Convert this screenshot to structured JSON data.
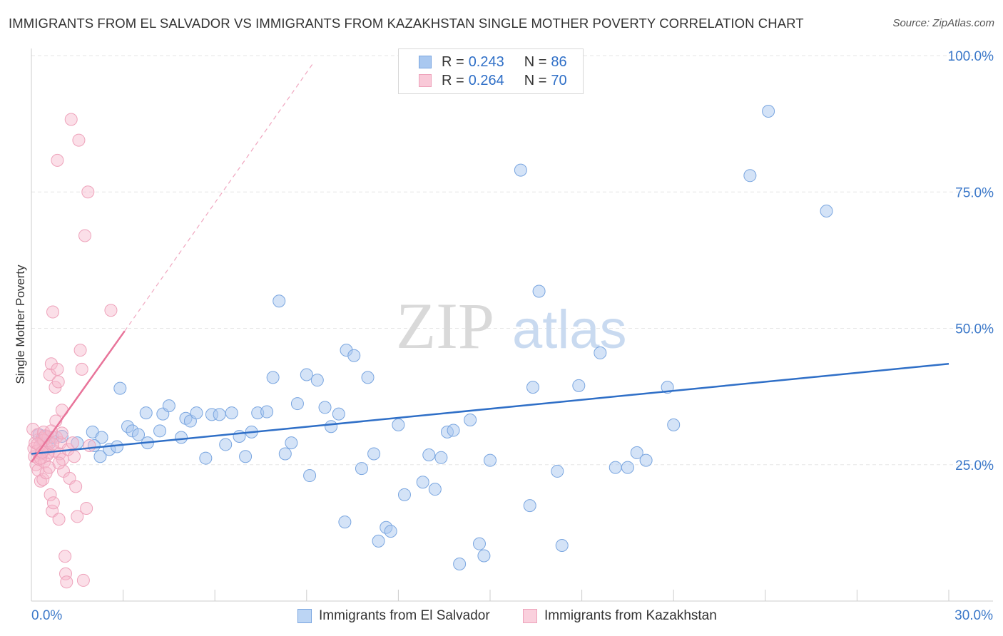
{
  "title": "IMMIGRANTS FROM EL SALVADOR VS IMMIGRANTS FROM KAZAKHSTAN SINGLE MOTHER POVERTY CORRELATION CHART",
  "source": "Source: ZipAtlas.com",
  "watermark": {
    "zip": "ZIP",
    "atlas": "atlas"
  },
  "legend": {
    "rows": [
      {
        "r_label": "R =",
        "r_value": "0.243",
        "n_label": "N =",
        "n_value": "86"
      },
      {
        "r_label": "R =",
        "r_value": "0.264",
        "n_label": "N =",
        "n_value": "70"
      }
    ]
  },
  "colors": {
    "blue": "#2f6fc7",
    "blue_fill": "#a9c8f0",
    "pink": "#e8749a",
    "pink_fill": "#f6b9cc",
    "grid": "#e6e6e6",
    "axis_text": "#3b78c9"
  },
  "chart_data": {
    "type": "scatter",
    "title": "IMMIGRANTS FROM EL SALVADOR VS IMMIGRANTS FROM KAZAKHSTAN SINGLE MOTHER POVERTY CORRELATION CHART",
    "xlabel": "",
    "ylabel": "Single Mother Poverty",
    "xlim": [
      0,
      30
    ],
    "ylim": [
      0,
      100
    ],
    "x_tick_labels": [
      "0.0%",
      "30.0%"
    ],
    "y_ticks": [
      25,
      50,
      75,
      100
    ],
    "y_tick_labels": [
      "25.0%",
      "50.0%",
      "75.0%",
      "100.0%"
    ],
    "grid": true,
    "legend_position": "top-center",
    "series": [
      {
        "name": "Immigrants from El Salvador",
        "color": "#2f6fc7",
        "r": 0.243,
        "n": 86,
        "trend": {
          "x": [
            0,
            30
          ],
          "y": [
            27,
            43.5
          ]
        },
        "points": [
          [
            0.25,
            30.5
          ],
          [
            0.35,
            29.5
          ],
          [
            0.5,
            30.2
          ],
          [
            0.6,
            29.0
          ],
          [
            0.7,
            30.0
          ],
          [
            1.0,
            30.2
          ],
          [
            1.5,
            29.0
          ],
          [
            2.0,
            31.0
          ],
          [
            2.3,
            30.0
          ],
          [
            2.05,
            28.5
          ],
          [
            2.25,
            26.5
          ],
          [
            2.55,
            27.8
          ],
          [
            2.8,
            28.3
          ],
          [
            2.9,
            39.0
          ],
          [
            3.15,
            32.0
          ],
          [
            3.3,
            31.2
          ],
          [
            3.5,
            30.5
          ],
          [
            3.8,
            29.0
          ],
          [
            3.75,
            34.5
          ],
          [
            4.2,
            31.2
          ],
          [
            4.3,
            34.3
          ],
          [
            4.5,
            35.8
          ],
          [
            4.9,
            30.0
          ],
          [
            5.05,
            33.5
          ],
          [
            5.2,
            33.0
          ],
          [
            5.4,
            34.5
          ],
          [
            5.7,
            26.2
          ],
          [
            5.9,
            34.2
          ],
          [
            6.15,
            34.2
          ],
          [
            6.35,
            28.7
          ],
          [
            6.55,
            34.5
          ],
          [
            6.8,
            30.2
          ],
          [
            7.0,
            26.5
          ],
          [
            7.2,
            31.0
          ],
          [
            7.4,
            34.5
          ],
          [
            7.7,
            34.7
          ],
          [
            7.9,
            41.0
          ],
          [
            8.1,
            55.0
          ],
          [
            8.3,
            27.0
          ],
          [
            8.5,
            29.0
          ],
          [
            8.7,
            36.2
          ],
          [
            9.0,
            41.5
          ],
          [
            9.1,
            23.0
          ],
          [
            9.35,
            40.5
          ],
          [
            9.6,
            35.5
          ],
          [
            9.8,
            32.0
          ],
          [
            10.05,
            34.3
          ],
          [
            10.3,
            46.0
          ],
          [
            10.25,
            14.5
          ],
          [
            10.55,
            45.0
          ],
          [
            10.8,
            24.3
          ],
          [
            11.0,
            41.0
          ],
          [
            11.2,
            27.0
          ],
          [
            11.35,
            11.0
          ],
          [
            11.6,
            13.5
          ],
          [
            11.75,
            12.8
          ],
          [
            12.0,
            32.3
          ],
          [
            12.2,
            19.5
          ],
          [
            12.8,
            21.8
          ],
          [
            13.0,
            26.8
          ],
          [
            13.2,
            20.5
          ],
          [
            13.4,
            26.3
          ],
          [
            13.6,
            31.0
          ],
          [
            13.8,
            31.3
          ],
          [
            14.0,
            6.8
          ],
          [
            14.35,
            33.2
          ],
          [
            14.65,
            10.5
          ],
          [
            14.8,
            8.3
          ],
          [
            15.0,
            25.8
          ],
          [
            16.0,
            79.0
          ],
          [
            16.3,
            17.5
          ],
          [
            16.4,
            39.2
          ],
          [
            16.6,
            56.8
          ],
          [
            17.2,
            23.8
          ],
          [
            17.35,
            10.2
          ],
          [
            17.9,
            39.5
          ],
          [
            18.6,
            45.5
          ],
          [
            19.1,
            24.5
          ],
          [
            19.5,
            24.5
          ],
          [
            19.8,
            27.2
          ],
          [
            20.1,
            25.8
          ],
          [
            20.8,
            39.2
          ],
          [
            21.0,
            32.3
          ],
          [
            23.5,
            78.0
          ],
          [
            24.1,
            89.8
          ],
          [
            26.0,
            71.5
          ]
        ]
      },
      {
        "name": "Immigrants from Kazakhstan",
        "color": "#e8749a",
        "r": 0.264,
        "n": 70,
        "trend": {
          "x": [
            0,
            3.05
          ],
          "y": [
            25.5,
            49.5
          ]
        },
        "trend_extension": {
          "x": [
            3.05,
            9.2
          ],
          "y": [
            49.5,
            98.5
          ]
        },
        "points": [
          [
            0.05,
            31.5
          ],
          [
            0.08,
            28.0
          ],
          [
            0.1,
            26.5
          ],
          [
            0.12,
            29.0
          ],
          [
            0.15,
            25.0
          ],
          [
            0.18,
            27.5
          ],
          [
            0.2,
            30.5
          ],
          [
            0.22,
            24.0
          ],
          [
            0.25,
            26.0
          ],
          [
            0.28,
            28.5
          ],
          [
            0.3,
            22.0
          ],
          [
            0.32,
            27.0
          ],
          [
            0.35,
            29.8
          ],
          [
            0.38,
            22.3
          ],
          [
            0.4,
            31.0
          ],
          [
            0.42,
            25.5
          ],
          [
            0.45,
            27.8
          ],
          [
            0.48,
            23.5
          ],
          [
            0.5,
            28.2
          ],
          [
            0.52,
            26.8
          ],
          [
            0.55,
            30.0
          ],
          [
            0.58,
            24.5
          ],
          [
            0.6,
            41.5
          ],
          [
            0.62,
            19.5
          ],
          [
            0.65,
            43.5
          ],
          [
            0.68,
            16.5
          ],
          [
            0.7,
            53.0
          ],
          [
            0.72,
            18.0
          ],
          [
            0.75,
            27.5
          ],
          [
            0.78,
            39.2
          ],
          [
            0.8,
            33.0
          ],
          [
            0.82,
            30.0
          ],
          [
            0.85,
            42.5
          ],
          [
            0.88,
            40.2
          ],
          [
            0.9,
            15.0
          ],
          [
            0.92,
            27.0
          ],
          [
            0.95,
            29.0
          ],
          [
            1.0,
            35.0
          ],
          [
            1.02,
            26.0
          ],
          [
            1.05,
            23.8
          ],
          [
            1.1,
            8.2
          ],
          [
            1.12,
            5.0
          ],
          [
            1.15,
            3.5
          ],
          [
            1.2,
            27.8
          ],
          [
            1.25,
            22.5
          ],
          [
            1.3,
            88.3
          ],
          [
            1.35,
            29.0
          ],
          [
            1.4,
            26.5
          ],
          [
            1.45,
            21.0
          ],
          [
            1.5,
            15.5
          ],
          [
            1.55,
            84.5
          ],
          [
            1.6,
            46.0
          ],
          [
            1.65,
            42.5
          ],
          [
            1.7,
            3.8
          ],
          [
            1.75,
            67.0
          ],
          [
            1.8,
            17.0
          ],
          [
            1.85,
            75.0
          ],
          [
            1.9,
            28.5
          ],
          [
            2.6,
            53.3
          ],
          [
            0.85,
            80.8
          ],
          [
            0.4,
            29.5
          ],
          [
            0.55,
            27.2
          ],
          [
            0.3,
            26.2
          ],
          [
            0.7,
            28.8
          ],
          [
            0.45,
            30.3
          ],
          [
            0.9,
            25.3
          ],
          [
            1.0,
            30.8
          ],
          [
            0.2,
            28.8
          ],
          [
            0.65,
            31.2
          ],
          [
            0.35,
            27.3
          ]
        ]
      }
    ]
  }
}
